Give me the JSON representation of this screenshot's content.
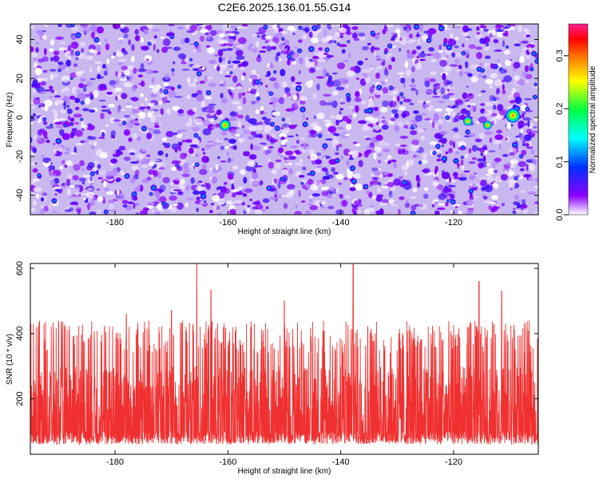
{
  "title": "C2E6.2025.136.01.55.G14",
  "chart_data": [
    {
      "type": "heatmap",
      "xlabel": "Height of straight line (km)",
      "ylabel": "Frequency (Hz)",
      "xlim": [
        -195,
        -105
      ],
      "ylim": [
        -50,
        48
      ],
      "xticks": [
        -180,
        -160,
        -140,
        -120
      ],
      "yticks": [
        -40,
        -20,
        0,
        20,
        40
      ],
      "colorbar": {
        "label": "Normalized spectral amplitude",
        "range": [
          0.0,
          0.36
        ],
        "ticks": [
          0.0,
          0.1,
          0.2,
          0.3
        ],
        "colors": [
          "#ffffff",
          "#8a00ff",
          "#0030ff",
          "#00ffff",
          "#00ff40",
          "#ffff00",
          "#ff8000",
          "#ff0000",
          "#ff2090"
        ]
      },
      "peaks": [
        {
          "x": -160.5,
          "y": -4,
          "amplitude": 0.2
        },
        {
          "x": -109.5,
          "y": 1,
          "amplitude": 0.3
        },
        {
          "x": -117.5,
          "y": -2,
          "amplitude": 0.13
        },
        {
          "x": -114,
          "y": -4,
          "amplitude": 0.12
        }
      ]
    },
    {
      "type": "line",
      "xlabel": "Height of straight line (km)",
      "ylabel": "SNR (10 * v/v)",
      "xlim": [
        -195,
        -105
      ],
      "ylim": [
        30,
        615
      ],
      "xticks": [
        -180,
        -160,
        -140,
        -120
      ],
      "yticks": [
        200,
        400,
        600
      ],
      "color": "#f03030",
      "baseline_range": [
        90,
        260
      ],
      "typical_peak": 370,
      "spikes": [
        {
          "x": -165.5,
          "y": 615
        },
        {
          "x": -137.8,
          "y": 612
        },
        {
          "x": -115.5,
          "y": 560
        },
        {
          "x": -111.5,
          "y": 530
        },
        {
          "x": -163.0,
          "y": 535
        },
        {
          "x": -150.0,
          "y": 500
        },
        {
          "x": -178.0,
          "y": 460
        },
        {
          "x": -170.0,
          "y": 472
        }
      ]
    }
  ]
}
